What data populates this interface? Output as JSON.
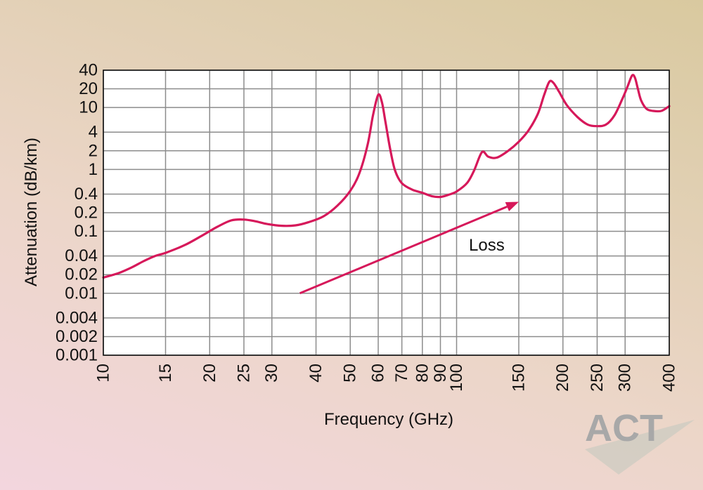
{
  "chart_data": {
    "type": "line",
    "title": "",
    "xlabel": "Frequency (GHz)",
    "ylabel": "Attenuation  (dB/km)",
    "x_scale": "log",
    "y_scale": "log",
    "xlim": [
      10,
      400
    ],
    "ylim": [
      0.001,
      40
    ],
    "grid": true,
    "x_ticks": [
      {
        "value": 10,
        "label": "10"
      },
      {
        "value": 15,
        "label": "15"
      },
      {
        "value": 20,
        "label": "20"
      },
      {
        "value": 25,
        "label": "25"
      },
      {
        "value": 30,
        "label": "30"
      },
      {
        "value": 40,
        "label": "40"
      },
      {
        "value": 50,
        "label": "50"
      },
      {
        "value": 60,
        "label": "60"
      },
      {
        "value": 70,
        "label": "70"
      },
      {
        "value": 80,
        "label": "80"
      },
      {
        "value": 90,
        "label": "90"
      },
      {
        "value": 100,
        "label": "100"
      },
      {
        "value": 150,
        "label": "150"
      },
      {
        "value": 200,
        "label": "200"
      },
      {
        "value": 250,
        "label": "250"
      },
      {
        "value": 300,
        "label": "300"
      },
      {
        "value": 400,
        "label": "400"
      }
    ],
    "y_ticks": [
      {
        "value": 0.001,
        "label": "0.001"
      },
      {
        "value": 0.002,
        "label": "0.002"
      },
      {
        "value": 0.004,
        "label": "0.004"
      },
      {
        "value": 0.01,
        "label": "0.01"
      },
      {
        "value": 0.02,
        "label": "0.02"
      },
      {
        "value": 0.04,
        "label": "0.04"
      },
      {
        "value": 0.1,
        "label": "0.1"
      },
      {
        "value": 0.2,
        "label": "0.2"
      },
      {
        "value": 0.4,
        "label": "0.4"
      },
      {
        "value": 1,
        "label": "1"
      },
      {
        "value": 2,
        "label": "2"
      },
      {
        "value": 4,
        "label": "4"
      },
      {
        "value": 10,
        "label": "10"
      },
      {
        "value": 20,
        "label": "20"
      },
      {
        "value": 40,
        "label": "40"
      }
    ],
    "series": [
      {
        "color": "#d6185a",
        "points": [
          [
            10,
            0.018
          ],
          [
            11,
            0.021
          ],
          [
            12,
            0.026
          ],
          [
            13,
            0.033
          ],
          [
            14,
            0.04
          ],
          [
            15,
            0.045
          ],
          [
            17,
            0.06
          ],
          [
            19,
            0.085
          ],
          [
            21,
            0.118
          ],
          [
            23,
            0.15
          ],
          [
            25,
            0.155
          ],
          [
            27,
            0.145
          ],
          [
            29,
            0.132
          ],
          [
            32,
            0.123
          ],
          [
            35,
            0.125
          ],
          [
            38,
            0.14
          ],
          [
            42,
            0.175
          ],
          [
            46,
            0.26
          ],
          [
            50,
            0.45
          ],
          [
            53,
            0.85
          ],
          [
            56,
            2.5
          ],
          [
            58,
            7.5
          ],
          [
            60,
            16
          ],
          [
            61.5,
            12
          ],
          [
            63,
            5.5
          ],
          [
            65,
            2.0
          ],
          [
            67,
            0.95
          ],
          [
            70,
            0.6
          ],
          [
            75,
            0.47
          ],
          [
            80,
            0.42
          ],
          [
            85,
            0.37
          ],
          [
            90,
            0.36
          ],
          [
            95,
            0.39
          ],
          [
            100,
            0.44
          ],
          [
            107,
            0.6
          ],
          [
            112,
            0.95
          ],
          [
            118,
            1.9
          ],
          [
            123,
            1.6
          ],
          [
            130,
            1.55
          ],
          [
            140,
            2.0
          ],
          [
            150,
            2.8
          ],
          [
            160,
            4.3
          ],
          [
            170,
            8.0
          ],
          [
            177,
            16
          ],
          [
            183,
            26
          ],
          [
            188,
            25
          ],
          [
            195,
            18
          ],
          [
            205,
            11
          ],
          [
            220,
            7.0
          ],
          [
            235,
            5.3
          ],
          [
            250,
            5.0
          ],
          [
            265,
            5.3
          ],
          [
            280,
            7.5
          ],
          [
            295,
            14
          ],
          [
            305,
            22
          ],
          [
            314,
            33
          ],
          [
            320,
            30
          ],
          [
            326,
            20
          ],
          [
            333,
            13
          ],
          [
            345,
            9.5
          ],
          [
            360,
            8.8
          ],
          [
            380,
            8.8
          ],
          [
            400,
            10.5
          ]
        ]
      }
    ],
    "annotations": [
      {
        "text": "Loss",
        "arrow_from": [
          36,
          0.01
        ],
        "arrow_to": [
          150,
          0.3
        ]
      }
    ]
  },
  "logo": {
    "text": "ACT"
  }
}
